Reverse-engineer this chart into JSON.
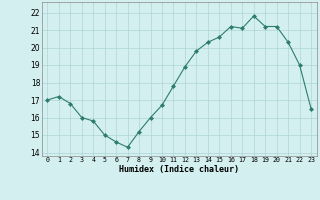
{
  "x": [
    0,
    1,
    2,
    3,
    4,
    5,
    6,
    7,
    8,
    9,
    10,
    11,
    12,
    13,
    14,
    15,
    16,
    17,
    18,
    19,
    20,
    21,
    22,
    23
  ],
  "y": [
    17.0,
    17.2,
    16.8,
    16.0,
    15.8,
    15.0,
    14.6,
    14.3,
    15.2,
    16.0,
    16.7,
    17.8,
    18.9,
    19.8,
    20.3,
    20.6,
    21.2,
    21.1,
    21.8,
    21.2,
    21.2,
    20.3,
    19.0,
    16.5
  ],
  "xlabel": "Humidex (Indice chaleur)",
  "ylim": [
    13.8,
    22.6
  ],
  "xlim": [
    -0.5,
    23.5
  ],
  "yticks": [
    14,
    15,
    16,
    17,
    18,
    19,
    20,
    21,
    22
  ],
  "xticks": [
    0,
    1,
    2,
    3,
    4,
    5,
    6,
    7,
    8,
    9,
    10,
    11,
    12,
    13,
    14,
    15,
    16,
    17,
    18,
    19,
    20,
    21,
    22,
    23
  ],
  "line_color": "#2d7d6f",
  "marker_color": "#2d7d6f",
  "bg_color": "#d4efef",
  "grid_color": "#aed4d4"
}
